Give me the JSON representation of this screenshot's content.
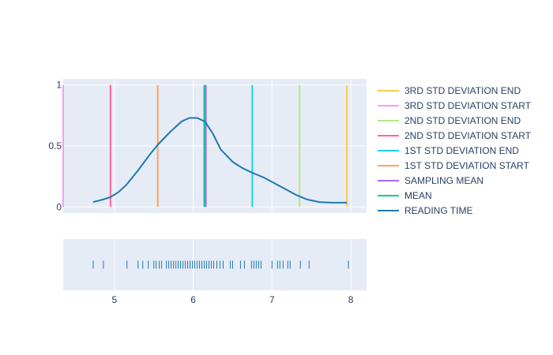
{
  "chart_data": {
    "type": "line",
    "xlim": [
      4.35,
      8.2
    ],
    "ylim": [
      -0.05,
      1.05
    ],
    "x_ticks": [
      5,
      6,
      7,
      8
    ],
    "y_ticks": [
      0,
      0.5,
      1
    ],
    "x_tick_labels": [
      "5",
      "6",
      "7",
      "8"
    ],
    "y_tick_labels": [
      "0",
      "0.5",
      "1"
    ],
    "grid": true,
    "legend_position": "right",
    "colors": {
      "plot_bg": "#e5ecf6",
      "grid": "#ffffff",
      "text": "#2a3f5f"
    },
    "series": [
      {
        "name": "3RD STD DEVIATION END",
        "kind": "vline",
        "x": 7.95,
        "color": "#fecb52"
      },
      {
        "name": "3RD STD DEVIATION START",
        "kind": "vline",
        "x": 4.35,
        "color": "#ff97ff"
      },
      {
        "name": "2ND STD DEVIATION END",
        "kind": "vline",
        "x": 7.35,
        "color": "#b6e880"
      },
      {
        "name": "2ND STD DEVIATION START",
        "kind": "vline",
        "x": 4.95,
        "color": "#ff6692"
      },
      {
        "name": "1ST STD DEVIATION END",
        "kind": "vline",
        "x": 6.75,
        "color": "#19d3f3"
      },
      {
        "name": "1ST STD DEVIATION START",
        "kind": "vline",
        "x": 5.55,
        "color": "#ffa15a"
      },
      {
        "name": "SAMPLING MEAN",
        "kind": "vline",
        "x": 6.16,
        "color": "#ab63fa"
      },
      {
        "name": "MEAN",
        "kind": "vline",
        "x": 6.14,
        "color": "#00cc96"
      },
      {
        "name": "READING TIME",
        "kind": "curve",
        "color": "#1f77b4",
        "x": [
          4.73,
          4.85,
          4.95,
          5.05,
          5.15,
          5.3,
          5.45,
          5.55,
          5.7,
          5.85,
          5.95,
          6.05,
          6.15,
          6.25,
          6.35,
          6.5,
          6.62,
          6.75,
          6.9,
          7.1,
          7.3,
          7.45,
          7.6,
          7.75,
          7.95
        ],
        "y": [
          0.04,
          0.06,
          0.08,
          0.12,
          0.18,
          0.3,
          0.43,
          0.51,
          0.61,
          0.7,
          0.73,
          0.73,
          0.7,
          0.6,
          0.47,
          0.37,
          0.32,
          0.28,
          0.24,
          0.17,
          0.1,
          0.06,
          0.04,
          0.035,
          0.035
        ]
      },
      {
        "name": "READING TIME",
        "kind": "rug",
        "color": "#1f77b4",
        "x": [
          4.73,
          4.86,
          5.16,
          5.3,
          5.36,
          5.43,
          5.5,
          5.53,
          5.57,
          5.6,
          5.66,
          5.69,
          5.72,
          5.75,
          5.78,
          5.81,
          5.84,
          5.87,
          5.9,
          5.93,
          5.96,
          5.99,
          6.02,
          6.05,
          6.08,
          6.11,
          6.14,
          6.17,
          6.2,
          6.23,
          6.26,
          6.3,
          6.34,
          6.38,
          6.47,
          6.5,
          6.6,
          6.65,
          6.74,
          6.77,
          6.8,
          6.83,
          6.86,
          7.0,
          7.07,
          7.1,
          7.14,
          7.2,
          7.23,
          7.36,
          7.47,
          7.97
        ]
      }
    ]
  }
}
